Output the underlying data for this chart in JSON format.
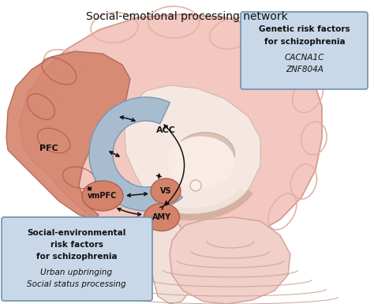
{
  "title": "Social-emotional processing network",
  "title_fontsize": 10,
  "bg_color": "#ffffff",
  "brain_base_color": "#f2c8c0",
  "brain_gyri_color": "#e8b0a8",
  "brain_light_color": "#f8ddd8",
  "brain_edge_color": "#d0968c",
  "medial_color": "#f5e8e0",
  "medial_edge": "#d4b8a8",
  "acc_color": "#a8bcd0",
  "acc_edge": "#7898b0",
  "pfc_color": "#d4826a",
  "pfc_edge": "#b06050",
  "node_color": "#d4826a",
  "node_edge": "#b06050",
  "corpus_color": "#c8a898",
  "box_bg": "#c8d8e8",
  "box_edge": "#7090b0",
  "arrow_color": "#111111",
  "text_color": "#111111",
  "brainstem_color": "#f0e0d8",
  "brainstem_edge": "#c8a898",
  "cerebellum_color": "#f0d0c8",
  "cerebellum_edge": "#d0a098",
  "genetic_box": {
    "title_line1": "Genetic risk factors",
    "title_line2": "for schizophrenia",
    "italic_line1": "CACNA1C",
    "italic_line2": "ZNF804A"
  },
  "social_box": {
    "title_line1": "Social-environmental",
    "title_line2": "risk factors",
    "title_line3": "for schizophrenia",
    "italic_line1": "Urban upbringing",
    "italic_line2": "Social status processing"
  }
}
